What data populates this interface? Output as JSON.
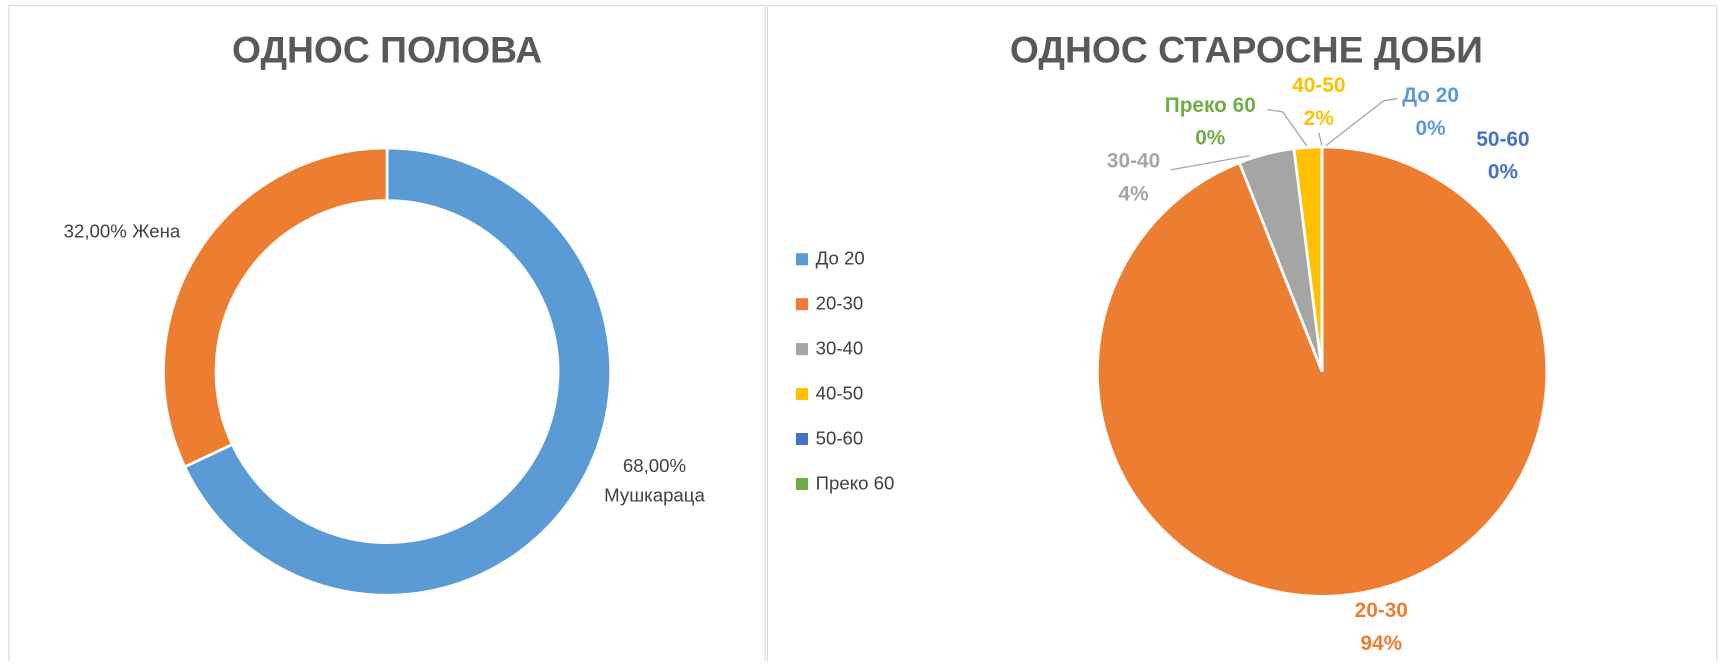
{
  "chart_data": [
    {
      "type": "donut",
      "title": "ОДНОС ПОЛОВА",
      "categories": [
        "Мушкараца",
        "Жена"
      ],
      "values": [
        68,
        32
      ],
      "value_labels": [
        "68,00%",
        "32,00%"
      ],
      "colors": [
        "#5b9bd5",
        "#ed7d31"
      ]
    },
    {
      "type": "pie",
      "title": "ОДНОС СТАРОСНЕ ДОБИ",
      "categories": [
        "До 20",
        "20-30",
        "30-40",
        "40-50",
        "50-60",
        "Преко 60"
      ],
      "values": [
        0,
        94,
        4,
        2,
        0,
        0
      ],
      "value_labels": [
        "0%",
        "94%",
        "4%",
        "2%",
        "0%",
        "0%"
      ],
      "colors": [
        "#5b9bd5",
        "#ed7d31",
        "#a5a5a5",
        "#ffc000",
        "#4472c4",
        "#70ad47"
      ],
      "legend": "left"
    }
  ]
}
